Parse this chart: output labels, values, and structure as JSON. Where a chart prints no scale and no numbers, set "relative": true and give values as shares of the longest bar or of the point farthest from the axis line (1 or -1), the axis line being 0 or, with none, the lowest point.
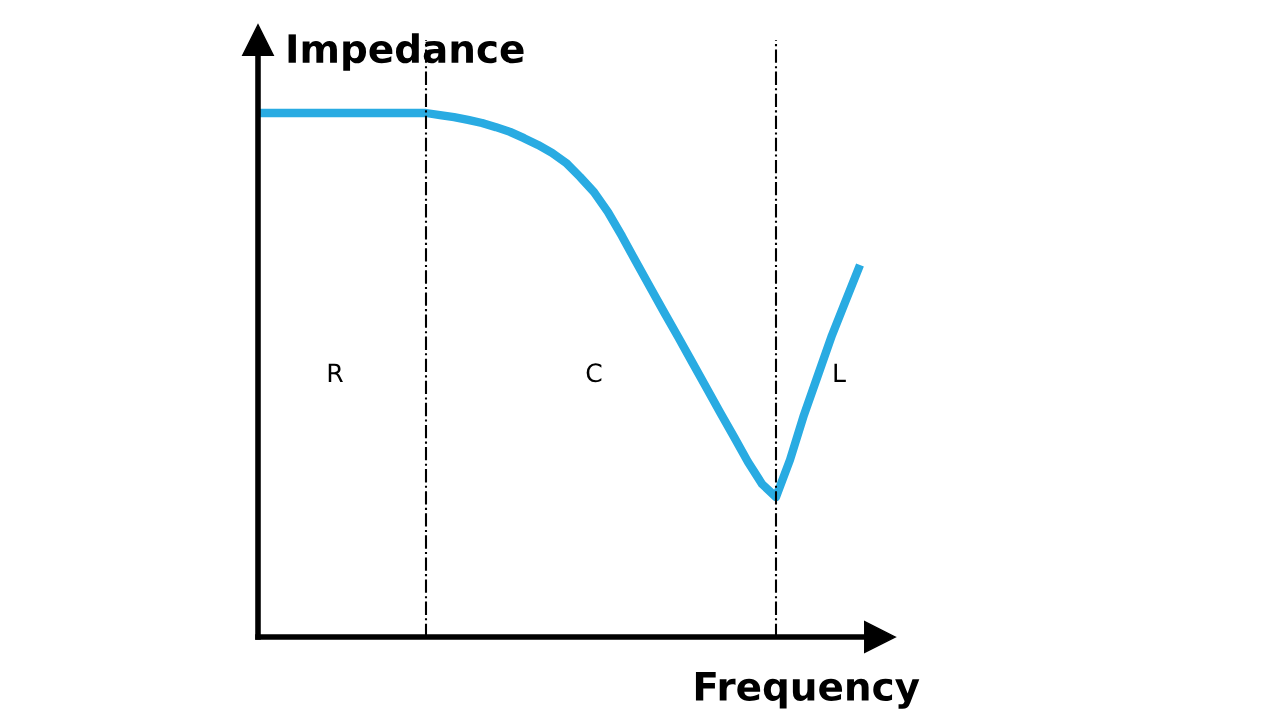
{
  "chart_data": {
    "type": "line",
    "relative": true,
    "xlabel": "Frequency",
    "ylabel": "Impedance",
    "categories": [
      null,
      null,
      null,
      null,
      null,
      null,
      null,
      null,
      null,
      null,
      null,
      null,
      null,
      null,
      null,
      null,
      null,
      null,
      null,
      null,
      null,
      null,
      null,
      null,
      null,
      null,
      null,
      null,
      null,
      null,
      null,
      null,
      null,
      null,
      null,
      null,
      null,
      null,
      null,
      null,
      null,
      null,
      null,
      null
    ],
    "series": [
      {
        "color": "#29abe2",
        "values": [
          1,
          1,
          1,
          1,
          1,
          1,
          1,
          1,
          1,
          1,
          1,
          1,
          1,
          0.996,
          0.992,
          0.987,
          0.981,
          0.973,
          0.964,
          0.952,
          0.939,
          0.924,
          0.905,
          0.878,
          0.849,
          0.811,
          0.765,
          0.716,
          0.668,
          0.62,
          0.573,
          0.525,
          0.477,
          0.429,
          0.382,
          0.334,
          0.292,
          0.267,
          0.338,
          0.424,
          0.5,
          0.576,
          0.643,
          0.71
        ]
      }
    ],
    "annotations": [
      "R",
      "C",
      "L"
    ],
    "legend": false,
    "marker": "none",
    "line_style": "solid"
  }
}
